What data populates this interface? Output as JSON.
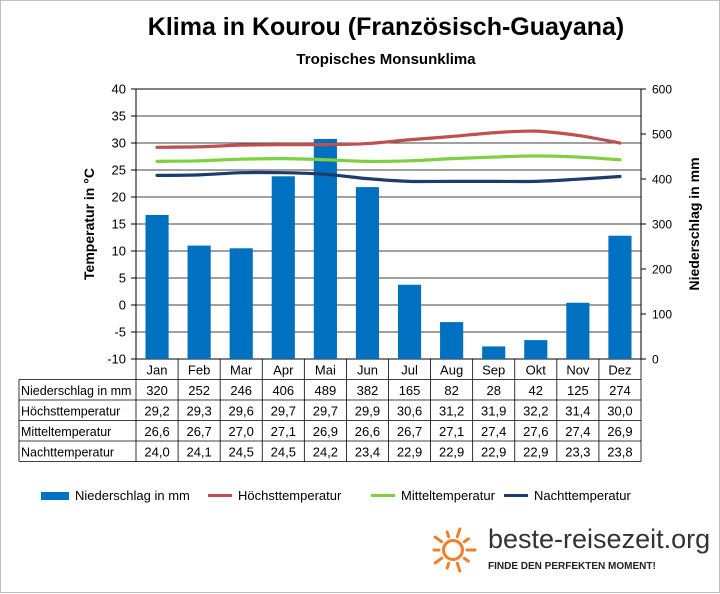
{
  "title": "Klima in Kourou (Französisch-Guayana)",
  "subtitle": "Tropisches Monsunklima",
  "chart_data": {
    "type": "bar",
    "categories": [
      "Jan",
      "Feb",
      "Mar",
      "Apr",
      "Mai",
      "Jun",
      "Jul",
      "Aug",
      "Sep",
      "Okt",
      "Nov",
      "Dez"
    ],
    "y_left": {
      "label": "Temperatur in °C",
      "ticks": [
        "40",
        "35",
        "30",
        "25",
        "20",
        "15",
        "10",
        "5",
        "0",
        "-5",
        "-10"
      ],
      "lim": [
        -10,
        40
      ]
    },
    "y_right": {
      "label": "Niederschlag in mm",
      "ticks": [
        "600",
        "500",
        "400",
        "300",
        "200",
        "100",
        "0"
      ],
      "lim": [
        0,
        600
      ]
    },
    "grid": "horizontal",
    "legend_position": "bottom",
    "series": [
      {
        "name": "Niederschlag in mm",
        "kind": "bar",
        "axis": "right",
        "color": "#0070c0",
        "values": [
          320,
          252,
          246,
          406,
          489,
          382,
          165,
          82,
          28,
          42,
          125,
          274
        ]
      },
      {
        "name": "Höchsttemperatur",
        "kind": "line",
        "axis": "left",
        "color": "#c0504d",
        "values": [
          29.2,
          29.3,
          29.6,
          29.7,
          29.7,
          29.9,
          30.6,
          31.2,
          31.9,
          32.2,
          31.4,
          30.0
        ]
      },
      {
        "name": "Mitteltemperatur",
        "kind": "line",
        "axis": "left",
        "color": "#7ed03f",
        "values": [
          26.6,
          26.7,
          27.0,
          27.1,
          26.9,
          26.6,
          26.7,
          27.1,
          27.4,
          27.6,
          27.4,
          26.9
        ]
      },
      {
        "name": "Nachttemperatur",
        "kind": "line",
        "axis": "left",
        "color": "#1f3b6d",
        "values": [
          24.0,
          24.1,
          24.5,
          24.5,
          24.2,
          23.4,
          22.9,
          22.9,
          22.9,
          22.9,
          23.3,
          23.8
        ]
      }
    ],
    "table": {
      "rows": [
        {
          "label": "Niederschlag in mm",
          "cells": [
            "320",
            "252",
            "246",
            "406",
            "489",
            "382",
            "165",
            "82",
            "28",
            "42",
            "125",
            "274"
          ]
        },
        {
          "label": "Höchsttemperatur",
          "cells": [
            "29,2",
            "29,3",
            "29,6",
            "29,7",
            "29,7",
            "29,9",
            "30,6",
            "31,2",
            "31,9",
            "32,2",
            "31,4",
            "30,0"
          ]
        },
        {
          "label": "Mitteltemperatur",
          "cells": [
            "26,6",
            "26,7",
            "27,0",
            "27,1",
            "26,9",
            "26,6",
            "26,7",
            "27,1",
            "27,4",
            "27,6",
            "27,4",
            "26,9"
          ]
        },
        {
          "label": "Nachttemperatur",
          "cells": [
            "24,0",
            "24,1",
            "24,5",
            "24,5",
            "24,2",
            "23,4",
            "22,9",
            "22,9",
            "22,9",
            "22,9",
            "23,3",
            "23,8"
          ]
        }
      ]
    }
  },
  "legend": [
    {
      "name": "Niederschlag in mm",
      "kind": "bar",
      "color": "#0070c0"
    },
    {
      "name": "Höchsttemperatur",
      "kind": "line",
      "color": "#c0504d"
    },
    {
      "name": "Mitteltemperatur",
      "kind": "line",
      "color": "#7ed03f"
    },
    {
      "name": "Nachttemperatur",
      "kind": "line",
      "color": "#1f3b6d"
    }
  ],
  "brand": {
    "name": "beste-reisezeit.org",
    "tagline": "FINDE DEN PERFEKTEN MOMENT!",
    "logo_icon": "sun-icon",
    "logo_color": "#f07f2a"
  }
}
